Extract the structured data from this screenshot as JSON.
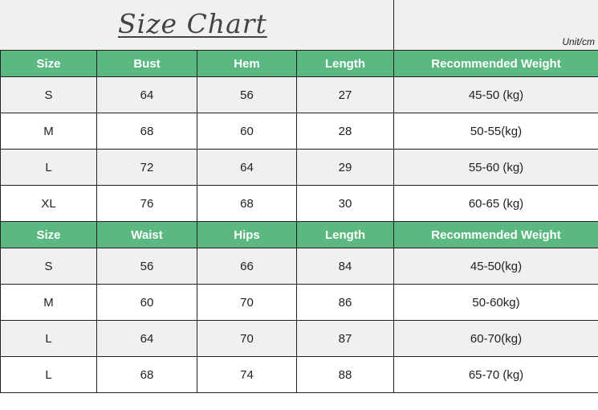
{
  "title": "Size Chart",
  "unit": "Unit/cm",
  "colors": {
    "header_bg": "#5bb881",
    "header_text": "#ffffff",
    "row_alt": "#f0f0f0"
  },
  "tops": {
    "headers": [
      "Size",
      "Bust",
      "Hem",
      "Length",
      "Recommended Weight"
    ],
    "rows": [
      [
        "S",
        "64",
        "56",
        "27",
        "45-50 (kg)"
      ],
      [
        "M",
        "68",
        "60",
        "28",
        "50-55(kg)"
      ],
      [
        "L",
        "72",
        "64",
        "29",
        "55-60 (kg)"
      ],
      [
        "XL",
        "76",
        "68",
        "30",
        "60-65 (kg)"
      ]
    ]
  },
  "bottoms": {
    "headers": [
      "Size",
      "Waist",
      "Hips",
      "Length",
      "Recommended Weight"
    ],
    "rows": [
      [
        "S",
        "56",
        "66",
        "84",
        "45-50(kg)"
      ],
      [
        "M",
        "60",
        "70",
        "86",
        "50-60kg)"
      ],
      [
        "L",
        "64",
        "70",
        "87",
        "60-70(kg)"
      ],
      [
        "L",
        "68",
        "74",
        "88",
        "65-70 (kg)"
      ]
    ]
  }
}
